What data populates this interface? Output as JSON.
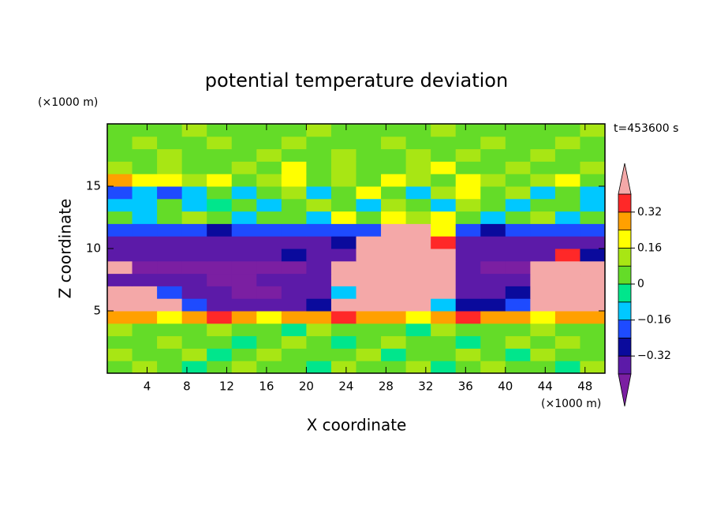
{
  "chart_data": {
    "type": "contour",
    "title": "potential temperature deviation",
    "x_label": "X coordinate",
    "y_label": "Z coordinate",
    "x_unit": "(×1000 m)",
    "y_unit": "(×1000 m)",
    "time_label": "t=453600 s",
    "xlim": [
      0,
      50
    ],
    "ylim": [
      0,
      20
    ],
    "xticks": [
      4,
      8,
      12,
      16,
      20,
      24,
      28,
      32,
      36,
      40,
      44,
      48
    ],
    "yticks": [
      5,
      10,
      15
    ],
    "xbins": [
      0,
      2.5,
      5,
      7.5,
      10,
      12.5,
      15,
      17.5,
      20,
      22.5,
      25,
      27.5,
      30,
      32.5,
      35,
      37.5,
      40,
      42.5,
      45,
      47.5,
      50
    ],
    "ybins": [
      0,
      1,
      2,
      3,
      4,
      5,
      6,
      7,
      8,
      9,
      10,
      11,
      12,
      13,
      14,
      15,
      16,
      17,
      18,
      19,
      20
    ],
    "levels": [
      -0.4,
      -0.32,
      -0.24,
      -0.16,
      -0.08,
      0,
      0.08,
      0.16,
      0.24,
      0.32,
      0.4
    ],
    "colors": [
      "#7b1fa2",
      "#5c1aa8",
      "#0a0a9c",
      "#1e4bff",
      "#00c8ff",
      "#00e68c",
      "#64dc28",
      "#a8e614",
      "#ffff00",
      "#ffa000",
      "#ff2828",
      "#f4a8a8"
    ],
    "colorbar_ticks": [
      {
        "value": -0.32,
        "label": "−0.32"
      },
      {
        "value": -0.16,
        "label": "−0.16"
      },
      0,
      0.16,
      0.32
    ],
    "z": [
      [
        0.04,
        0.1,
        0.04,
        -0.04,
        0.04,
        0.1,
        0.04,
        0.04,
        -0.04,
        0.1,
        0.04,
        0.04,
        0.1,
        -0.04,
        0.04,
        0.1,
        0.04,
        0.04,
        -0.04,
        0.1
      ],
      [
        0.1,
        0.04,
        0.04,
        0.1,
        -0.04,
        0.04,
        0.1,
        0.04,
        0.04,
        0.04,
        0.1,
        -0.04,
        0.04,
        0.04,
        0.1,
        0.04,
        -0.04,
        0.1,
        0.04,
        0.04
      ],
      [
        0.04,
        0.04,
        0.1,
        0.04,
        0.04,
        -0.04,
        0.04,
        0.1,
        0.04,
        -0.04,
        0.04,
        0.1,
        0.04,
        0.04,
        -0.04,
        0.04,
        0.1,
        0.04,
        0.1,
        0.04
      ],
      [
        0.1,
        0.04,
        0.04,
        0.04,
        0.1,
        0.04,
        0.04,
        -0.04,
        0.1,
        0.04,
        0.04,
        0.04,
        -0.04,
        0.1,
        0.04,
        0.04,
        0.04,
        0.1,
        0.04,
        0.04
      ],
      [
        0.28,
        0.28,
        0.2,
        0.28,
        0.36,
        0.28,
        0.2,
        0.28,
        0.28,
        0.36,
        0.28,
        0.28,
        0.2,
        0.28,
        0.36,
        0.28,
        0.28,
        0.2,
        0.28,
        0.28
      ],
      [
        0.5,
        0.5,
        0.5,
        -0.2,
        -0.36,
        -0.36,
        -0.36,
        -0.36,
        -0.28,
        0.5,
        0.5,
        0.5,
        0.5,
        -0.12,
        -0.28,
        -0.28,
        -0.2,
        0.5,
        0.5,
        0.5
      ],
      [
        0.5,
        0.5,
        -0.2,
        -0.36,
        -0.36,
        -0.44,
        -0.44,
        -0.36,
        -0.36,
        -0.1,
        0.5,
        0.5,
        0.5,
        0.5,
        -0.36,
        -0.36,
        -0.28,
        0.5,
        0.5,
        0.5
      ],
      [
        -0.36,
        -0.36,
        -0.36,
        -0.36,
        -0.44,
        -0.44,
        -0.36,
        -0.36,
        -0.36,
        0.5,
        0.5,
        0.5,
        0.5,
        0.5,
        -0.36,
        -0.36,
        -0.36,
        0.5,
        0.5,
        0.5
      ],
      [
        0.5,
        -0.44,
        -0.44,
        -0.44,
        -0.44,
        -0.44,
        -0.44,
        -0.44,
        -0.36,
        0.5,
        0.5,
        0.5,
        0.5,
        0.5,
        -0.36,
        -0.44,
        -0.44,
        0.5,
        0.5,
        0.5
      ],
      [
        -0.36,
        -0.36,
        -0.36,
        -0.36,
        -0.36,
        -0.36,
        -0.36,
        -0.28,
        -0.36,
        -0.36,
        0.5,
        0.5,
        0.5,
        0.5,
        -0.36,
        -0.36,
        -0.36,
        -0.36,
        0.36,
        -0.28
      ],
      [
        -0.36,
        -0.36,
        -0.36,
        -0.36,
        -0.36,
        -0.36,
        -0.36,
        -0.36,
        -0.36,
        -0.28,
        0.5,
        0.5,
        0.5,
        0.36,
        -0.36,
        -0.36,
        -0.36,
        -0.36,
        -0.36,
        -0.36
      ],
      [
        -0.2,
        -0.2,
        -0.2,
        -0.2,
        -0.28,
        -0.2,
        -0.2,
        -0.2,
        -0.2,
        -0.2,
        -0.2,
        0.5,
        0.5,
        0.2,
        -0.2,
        -0.28,
        -0.2,
        -0.2,
        -0.2,
        -0.2
      ],
      [
        0.04,
        -0.12,
        0.04,
        0.1,
        0.04,
        -0.12,
        0.04,
        0.04,
        -0.12,
        0.2,
        0.04,
        0.2,
        0.1,
        0.2,
        0.04,
        -0.12,
        0.04,
        0.1,
        -0.12,
        0.04
      ],
      [
        -0.12,
        -0.12,
        0.04,
        -0.12,
        -0.04,
        0.04,
        -0.12,
        0.04,
        0.1,
        0.04,
        -0.12,
        0.1,
        0.04,
        -0.12,
        0.1,
        0.04,
        -0.12,
        0.04,
        0.04,
        -0.12
      ],
      [
        -0.2,
        -0.12,
        -0.2,
        -0.12,
        0.04,
        -0.12,
        0.04,
        0.1,
        -0.12,
        0.04,
        0.2,
        0.04,
        -0.12,
        0.1,
        0.2,
        0.04,
        0.1,
        -0.12,
        0.04,
        -0.12
      ],
      [
        0.28,
        0.2,
        0.2,
        0.1,
        0.2,
        0.04,
        0.1,
        0.2,
        0.04,
        0.1,
        0.04,
        0.2,
        0.1,
        0.04,
        0.2,
        0.1,
        0.04,
        0.1,
        0.2,
        0.04
      ],
      [
        0.1,
        0.04,
        0.1,
        0.04,
        0.04,
        0.1,
        0.04,
        0.2,
        0.04,
        0.1,
        0.04,
        0.04,
        0.1,
        0.2,
        0.04,
        0.04,
        0.1,
        0.04,
        0.04,
        0.1
      ],
      [
        0.04,
        0.04,
        0.1,
        0.04,
        0.04,
        0.04,
        0.1,
        0.04,
        0.04,
        0.1,
        0.04,
        0.04,
        0.1,
        0.04,
        0.1,
        0.04,
        0.04,
        0.1,
        0.04,
        0.04
      ],
      [
        0.04,
        0.1,
        0.04,
        0.04,
        0.1,
        0.04,
        0.04,
        0.1,
        0.04,
        0.04,
        0.04,
        0.1,
        0.04,
        0.04,
        0.04,
        0.1,
        0.04,
        0.04,
        0.1,
        0.04
      ],
      [
        0.04,
        0.04,
        0.04,
        0.1,
        0.04,
        0.04,
        0.04,
        0.04,
        0.1,
        0.04,
        0.04,
        0.04,
        0.04,
        0.1,
        0.04,
        0.04,
        0.04,
        0.04,
        0.04,
        0.1
      ]
    ]
  }
}
